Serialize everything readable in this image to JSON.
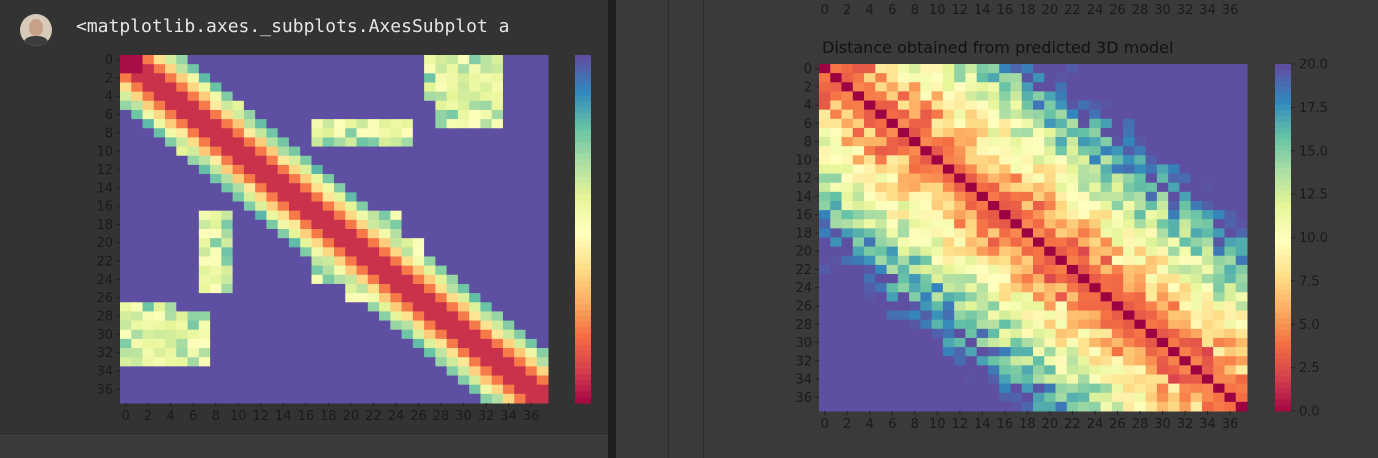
{
  "output": {
    "text": "<matplotlib.axes._subplots.AxesSubplot a"
  },
  "chart_data": [
    {
      "type": "heatmap",
      "name": "left",
      "title": "",
      "xlabel": "",
      "ylabel": "",
      "x_ticks": [
        "0",
        "2",
        "4",
        "6",
        "8",
        "10",
        "12",
        "14",
        "16",
        "18",
        "20",
        "22",
        "24",
        "26",
        "28",
        "30",
        "32",
        "34",
        "36"
      ],
      "y_ticks": [
        "0",
        "2",
        "4",
        "6",
        "8",
        "10",
        "12",
        "14",
        "16",
        "18",
        "20",
        "22",
        "24",
        "26",
        "28",
        "30",
        "32",
        "34",
        "36"
      ],
      "colormap": "Spectral",
      "colorbar": true
    },
    {
      "type": "heatmap",
      "name": "right",
      "title": "Distance obtained from predicted 3D model",
      "xlabel": "",
      "ylabel": "",
      "x_ticks": [
        "0",
        "2",
        "4",
        "6",
        "8",
        "10",
        "12",
        "14",
        "16",
        "18",
        "20",
        "22",
        "24",
        "26",
        "28",
        "30",
        "32",
        "34",
        "36"
      ],
      "y_ticks": [
        "0",
        "2",
        "4",
        "6",
        "8",
        "10",
        "12",
        "14",
        "16",
        "18",
        "20",
        "22",
        "24",
        "26",
        "28",
        "30",
        "32",
        "34",
        "36"
      ],
      "colormap": "Spectral",
      "vmin": 0,
      "vmax": 20,
      "colorbar_ticks": [
        "0.0",
        "2.5",
        "5.0",
        "7.5",
        "10.0",
        "12.5",
        "15.0",
        "17.5",
        "20.0"
      ]
    }
  ]
}
